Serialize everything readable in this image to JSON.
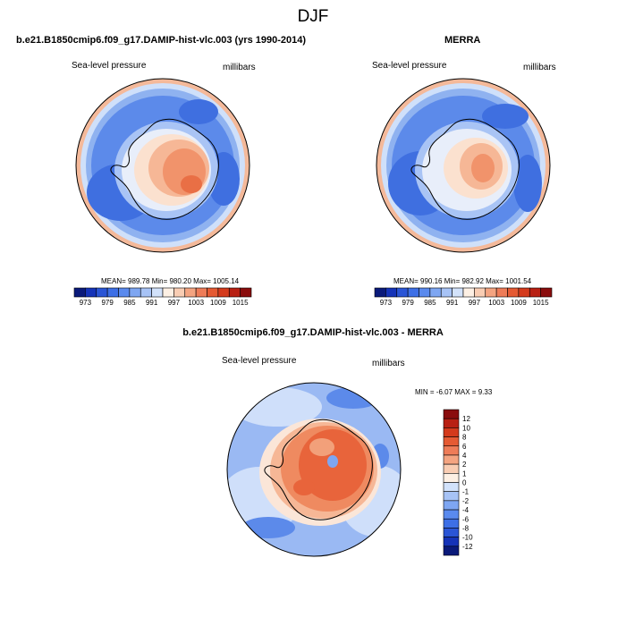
{
  "title": "DJF",
  "panels": [
    {
      "title": "b.e21.B1850cmip6.f09_g17.DAMIP-hist-vlc.003 (yrs 1990-2014)",
      "left_label": "Sea-level pressure",
      "right_label": "millibars",
      "stats": "MEAN= 989.78   Min= 980.20   Max= 1005.14"
    },
    {
      "title": "MERRA",
      "left_label": "Sea-level pressure",
      "right_label": "millibars",
      "stats": "MEAN= 990.16   Min= 982.92   Max= 1001.54"
    },
    {
      "title": "b.e21.B1850cmip6.f09_g17.DAMIP-hist-vlc.003 - MERRA",
      "left_label": "Sea-level pressure",
      "right_label": "millibars",
      "stats": "MIN =  -6.07 MAX =   9.33"
    }
  ],
  "colorbar_abs": {
    "colors": [
      "#0a1a7a",
      "#1533b8",
      "#2a55d6",
      "#3d6fe6",
      "#5a8aee",
      "#7ea6f2",
      "#a7c3f6",
      "#d2e2fb",
      "#fdf0e4",
      "#f9cdb3",
      "#f4a481",
      "#ee7c58",
      "#e55a33",
      "#d43a1c",
      "#b82013",
      "#8a0d0d"
    ],
    "labels": [
      "973",
      "979",
      "985",
      "991",
      "997",
      "1003",
      "1009",
      "1015"
    ]
  },
  "colorbar_diff": {
    "colors": [
      "#0a1a7a",
      "#1533b8",
      "#2a55d6",
      "#3d6fe6",
      "#5a8aee",
      "#7ea6f2",
      "#a7c3f6",
      "#d2e2fb",
      "#fdf0e4",
      "#f9cdb3",
      "#f4a481",
      "#ee7c58",
      "#e55a33",
      "#d43a1c",
      "#b82013",
      "#8a0d0d"
    ],
    "labels": [
      "12",
      "10",
      "8",
      "6",
      "4",
      "2",
      "1",
      "0",
      "-1",
      "-2",
      "-4",
      "-6",
      "-8",
      "-10",
      "-12"
    ]
  }
}
